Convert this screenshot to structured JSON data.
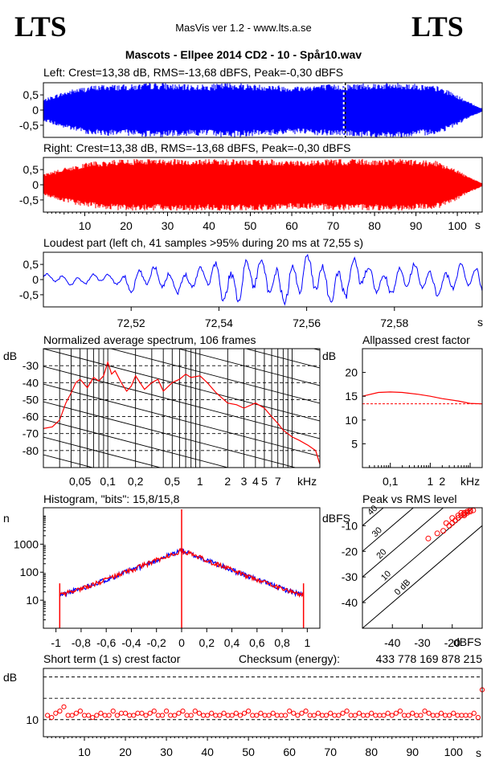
{
  "header": {
    "logo_left": "LTS",
    "logo_right": "LTS",
    "app_version": "MasVis ver 1.2 - www.lts.a.se",
    "file_title": "Mascots - Ellpee 2014 CD2 - 10 - Spår10.wav"
  },
  "colors": {
    "left": "#0000ff",
    "right": "#ff0000",
    "grid": "#000000"
  },
  "chart_data": [
    {
      "id": "left-waveform",
      "type": "line",
      "title": "Left: Crest=13,38 dB, RMS=-13,68 dBFS, Peak=-0,30 dBFS",
      "ylim": [
        -0.9,
        0.9
      ],
      "xlim": [
        0,
        106
      ],
      "yticks": [
        "0,5",
        "0",
        "-0,5"
      ],
      "marker_x": 72.55,
      "series": [
        {
          "envelope": [
            0.35,
            0.55,
            0.7,
            0.8,
            0.85,
            0.85,
            0.85,
            0.9,
            0.9,
            0.85,
            0.85,
            0.85,
            0.9,
            0.9,
            0.85,
            0.85,
            0.8,
            0.8,
            0.85,
            0.85,
            0.85,
            0.9,
            0.9,
            0.9,
            0.9,
            0.85,
            0.8,
            0.6,
            0.3,
            0.05
          ]
        }
      ]
    },
    {
      "id": "right-waveform",
      "type": "line",
      "title": "Right: Crest=13,38 dB, RMS=-13,68 dBFS, Peak=-0,30 dBFS",
      "ylim": [
        -0.9,
        0.9
      ],
      "xlim": [
        0,
        106
      ],
      "yticks": [
        "0,5",
        "0",
        "-0,5"
      ],
      "xticks": [
        "10",
        "20",
        "30",
        "40",
        "50",
        "60",
        "70",
        "80",
        "90",
        "100"
      ],
      "xunit": "s",
      "series": [
        {
          "envelope": [
            0.35,
            0.5,
            0.65,
            0.75,
            0.8,
            0.85,
            0.85,
            0.85,
            0.85,
            0.85,
            0.85,
            0.85,
            0.85,
            0.85,
            0.85,
            0.85,
            0.8,
            0.8,
            0.8,
            0.85,
            0.85,
            0.85,
            0.85,
            0.85,
            0.85,
            0.8,
            0.8,
            0.6,
            0.3,
            0.05
          ]
        }
      ]
    },
    {
      "id": "loudest-part",
      "type": "line",
      "title": "Loudest part (left  ch, 41 samples >95% during 20 ms at 72,55 s)",
      "xlim": [
        72.5,
        72.6
      ],
      "ylim": [
        -0.9,
        0.9
      ],
      "yticks": [
        "0,5",
        "0",
        "-0,5"
      ],
      "xticks": [
        "72,52",
        "72,54",
        "72,56",
        "72,58"
      ],
      "xunit": "s"
    },
    {
      "id": "average-spectrum",
      "type": "line",
      "title": "Normalized average spectrum, 106 frames",
      "ylabel": "dB",
      "xunit": "kHz",
      "yticks": [
        "-30",
        "-40",
        "-50",
        "-60",
        "-70",
        "-80"
      ],
      "xticks": [
        "0,05",
        "0,1",
        "0,2",
        "0,5",
        "1",
        "2",
        "3",
        "4",
        "5",
        "7"
      ],
      "ylim": [
        -90,
        -20
      ],
      "x": [
        0.02,
        0.025,
        0.03,
        0.035,
        0.04,
        0.045,
        0.05,
        0.06,
        0.07,
        0.08,
        0.09,
        0.1,
        0.11,
        0.12,
        0.14,
        0.16,
        0.18,
        0.2,
        0.25,
        0.3,
        0.35,
        0.4,
        0.5,
        0.6,
        0.7,
        0.8,
        1,
        1.2,
        1.5,
        2,
        2.5,
        3,
        4,
        5,
        6,
        7,
        8,
        10,
        12,
        15,
        18,
        20
      ],
      "y": [
        -67,
        -66,
        -62,
        -52,
        -46,
        -40,
        -38,
        -43,
        -37,
        -39,
        -36,
        -28,
        -35,
        -33,
        -40,
        -45,
        -42,
        -36,
        -44,
        -40,
        -38,
        -45,
        -40,
        -38,
        -35,
        -37,
        -36,
        -40,
        -46,
        -52,
        -53,
        -55,
        -52,
        -55,
        -60,
        -64,
        -68,
        -72,
        -74,
        -77,
        -80,
        -88
      ]
    },
    {
      "id": "allpassed-crest",
      "type": "line",
      "title": "Allpassed crest factor",
      "ylabel": "dB",
      "xunit": "kHz",
      "yticks": [
        "20",
        "15",
        "10",
        "5"
      ],
      "xticks": [
        "0,1",
        "1",
        "2"
      ],
      "ylim": [
        0,
        25
      ],
      "reference": 13.4,
      "x": [
        0.02,
        0.05,
        0.1,
        0.2,
        0.5,
        1,
        2,
        5,
        10,
        20
      ],
      "y": [
        15,
        15.8,
        15.9,
        15.8,
        15.4,
        15,
        14.5,
        14,
        13.5,
        13.4
      ]
    },
    {
      "id": "histogram",
      "type": "line",
      "title": "Histogram, \"bits\": 15,8/15,8",
      "ylabel": "n",
      "yticks": [
        "1000",
        "100",
        "10"
      ],
      "xticks": [
        "-1",
        "-0,8",
        "-0,6",
        "-0,4",
        "-0,2",
        "0",
        "0,2",
        "0,4",
        "0,6",
        "0,8",
        "1"
      ],
      "xlim": [
        -1.1,
        1.1
      ]
    },
    {
      "id": "peak-vs-rms",
      "type": "scatter",
      "title": "Peak vs RMS level",
      "ylabel": "dBFS",
      "xunit": "dBFS",
      "yticks": [
        "-10",
        "-20",
        "-30",
        "-40"
      ],
      "xticks": [
        "-40",
        "-30",
        "-20"
      ],
      "diagonal_labels": [
        "40",
        "30",
        "20",
        "10",
        "0 dB"
      ],
      "xlim": [
        -50,
        -10
      ],
      "ylim": [
        -50,
        -3
      ],
      "x": [
        -28,
        -25,
        -23,
        -21,
        -20,
        -19,
        -18,
        -17,
        -16,
        -15,
        -14,
        -13,
        -20,
        -18,
        -17,
        -16,
        -15,
        -14,
        -22,
        -16
      ],
      "y": [
        -15,
        -13,
        -12,
        -10,
        -9,
        -8,
        -7,
        -6,
        -5.5,
        -5,
        -4.5,
        -4,
        -7,
        -6,
        -5,
        -5,
        -4.5,
        -4,
        -9,
        -6
      ]
    },
    {
      "id": "short-term-crest",
      "type": "scatter",
      "title": "Short term (1 s) crest factor",
      "checksum_label": "Checksum (energy):",
      "checksum_value": "433 778 169 878 215",
      "ylabel": "dB",
      "yticks": [
        "10"
      ],
      "xticks": [
        "10",
        "20",
        "30",
        "40",
        "50",
        "60",
        "70",
        "80",
        "90",
        "100"
      ],
      "xunit": "s",
      "xlim": [
        0,
        107
      ],
      "ylim": [
        6,
        22
      ],
      "y": [
        11,
        10.5,
        11.5,
        12,
        13,
        11,
        11,
        11.5,
        12,
        11,
        11,
        10.5,
        11,
        11.5,
        11,
        11,
        12,
        11,
        11.5,
        11.5,
        11,
        11,
        11.5,
        11.5,
        11,
        11.5,
        12,
        11,
        11,
        12,
        11,
        11,
        11.5,
        12,
        11,
        11,
        12,
        11.5,
        11,
        11,
        11.5,
        11,
        11,
        11.5,
        11,
        11,
        11.5,
        11,
        11.5,
        12,
        11,
        11,
        11.5,
        11,
        11,
        11.5,
        11,
        11,
        11,
        12,
        11.5,
        11,
        11.5,
        12,
        11,
        11,
        11.5,
        11,
        11,
        11.5,
        11,
        11,
        11.5,
        12,
        11,
        11,
        11.5,
        11,
        11,
        11.5,
        11,
        11,
        11,
        11.5,
        11,
        11.5,
        12,
        11,
        11,
        11.5,
        11,
        11,
        12,
        11.5,
        11,
        11,
        11.5,
        11,
        11,
        11.5,
        11,
        11,
        11,
        11,
        11.5,
        10.5,
        17
      ]
    }
  ]
}
